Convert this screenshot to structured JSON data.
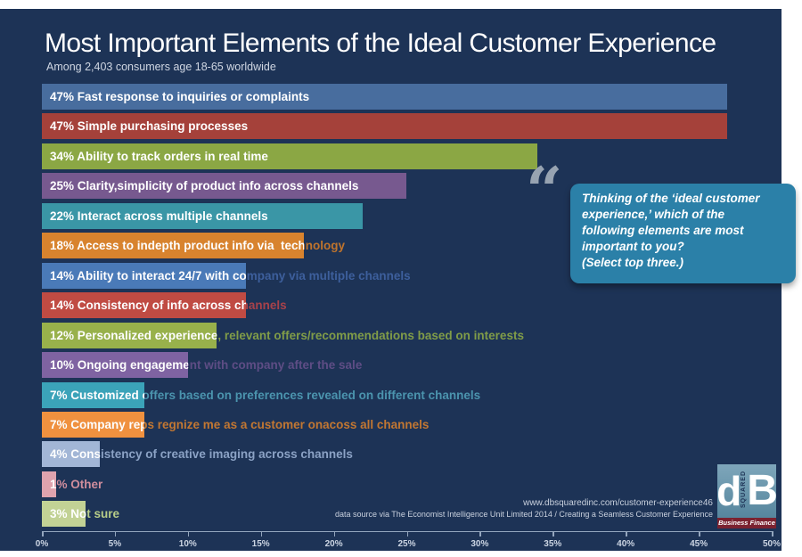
{
  "colors": {
    "panel_background": "#1d3356",
    "page_margin": "#ffffff",
    "quote_box": "#2b80a8",
    "quote_glyph": "#97a3b1",
    "axis_line": "#93a5bd",
    "axis_label": "#ccd5e3"
  },
  "header": {
    "title": "Most Important Elements of the Ideal Customer Experience",
    "subtitle": "Among 2,403 consumers age 18-65 worldwide"
  },
  "quote": {
    "glyph": "“",
    "text": "Thinking of the ‘ideal customer\nexperience,’ which of the\nfollowing elements are most\nimportant to you?\n(Select top three.)"
  },
  "chart_data": {
    "type": "bar",
    "orientation": "horizontal",
    "title": "Most Important Elements of the Ideal Customer Experience",
    "subtitle": "Among 2,403 consumers age 18-65 worldwide",
    "xlim": [
      0,
      50
    ],
    "x_ticks": [
      "0%",
      "5%",
      "10%",
      "15%",
      "20%",
      "25%",
      "30%",
      "35%",
      "40%",
      "45%",
      "50%"
    ],
    "grid": false,
    "legend": false,
    "items": [
      {
        "value": 47,
        "label": "47% Fast response to inquiries or complaints",
        "bar_color": "#486d9e",
        "overflow_text_color": "#6a8cba"
      },
      {
        "value": 47,
        "label": "47% Simple purchasing processes",
        "bar_color": "#a5413a",
        "overflow_text_color": "#b25b52"
      },
      {
        "value": 34,
        "label": "34% Ability to track orders in real time",
        "bar_color": "#8ba744",
        "overflow_text_color": "#95b14e"
      },
      {
        "value": 25,
        "label": "25% Clarity,simplicity of product info across channels",
        "bar_color": "#77598f",
        "overflow_text_color": "#8a6da4"
      },
      {
        "value": 22,
        "label": "22% Interact across multiple channels",
        "bar_color": "#3a96a6",
        "overflow_text_color": "#4fa6b6"
      },
      {
        "value": 18,
        "label": "18% Access to indepth product info via  technology",
        "bar_color": "#d8832e",
        "overflow_text_color": "#c0742c"
      },
      {
        "value": 14,
        "label": "14% Ability to interact 24/7 with company via multiple channels",
        "bar_color": "#4a7ab8",
        "overflow_text_color": "#3d5f9c"
      },
      {
        "value": 14,
        "label": "14% Consistency of info across channels",
        "bar_color": "#c04b43",
        "overflow_text_color": "#a8424a"
      },
      {
        "value": 12,
        "label": "12% Personalized experience, relevant offers/recommendations based on interests",
        "bar_color": "#98b14b",
        "overflow_text_color": "#809c48"
      },
      {
        "value": 10,
        "label": "10% Ongoing engagement with company after the sale",
        "bar_color": "#7f63a2",
        "overflow_text_color": "#5e4d85"
      },
      {
        "value": 7,
        "label": "7% Customized offers based on preferences revealed on different channels",
        "bar_color": "#3ba3b9",
        "overflow_text_color": "#4b94ae"
      },
      {
        "value": 7,
        "label": "7% Company reps regnize me as a customer onacoss all channels",
        "bar_color": "#f0913f",
        "overflow_text_color": "#c27732"
      },
      {
        "value": 4,
        "label": "4% Consistency of creative imaging across channels",
        "bar_color": "#a2b6d6",
        "overflow_text_color": "#8ba2c5"
      },
      {
        "value": 1,
        "label": "1% Other",
        "bar_color": "#dfa3ae",
        "overflow_text_color": "#d08e9d"
      },
      {
        "value": 3,
        "label": "3% Not sure",
        "bar_color": "#c2d295",
        "overflow_text_color": "#b7cd88"
      }
    ]
  },
  "footer": {
    "url_line": "www.dbsquaredinc.com/customer-experience46",
    "source_line": "data source via The Economist Intelligence Unit Limited 2014 / Creating a Seamless Customer Experience"
  },
  "logo": {
    "d_letter": "d",
    "squared_text": "SQUARED",
    "b_letter": "B",
    "band_text": "Business Finance"
  }
}
